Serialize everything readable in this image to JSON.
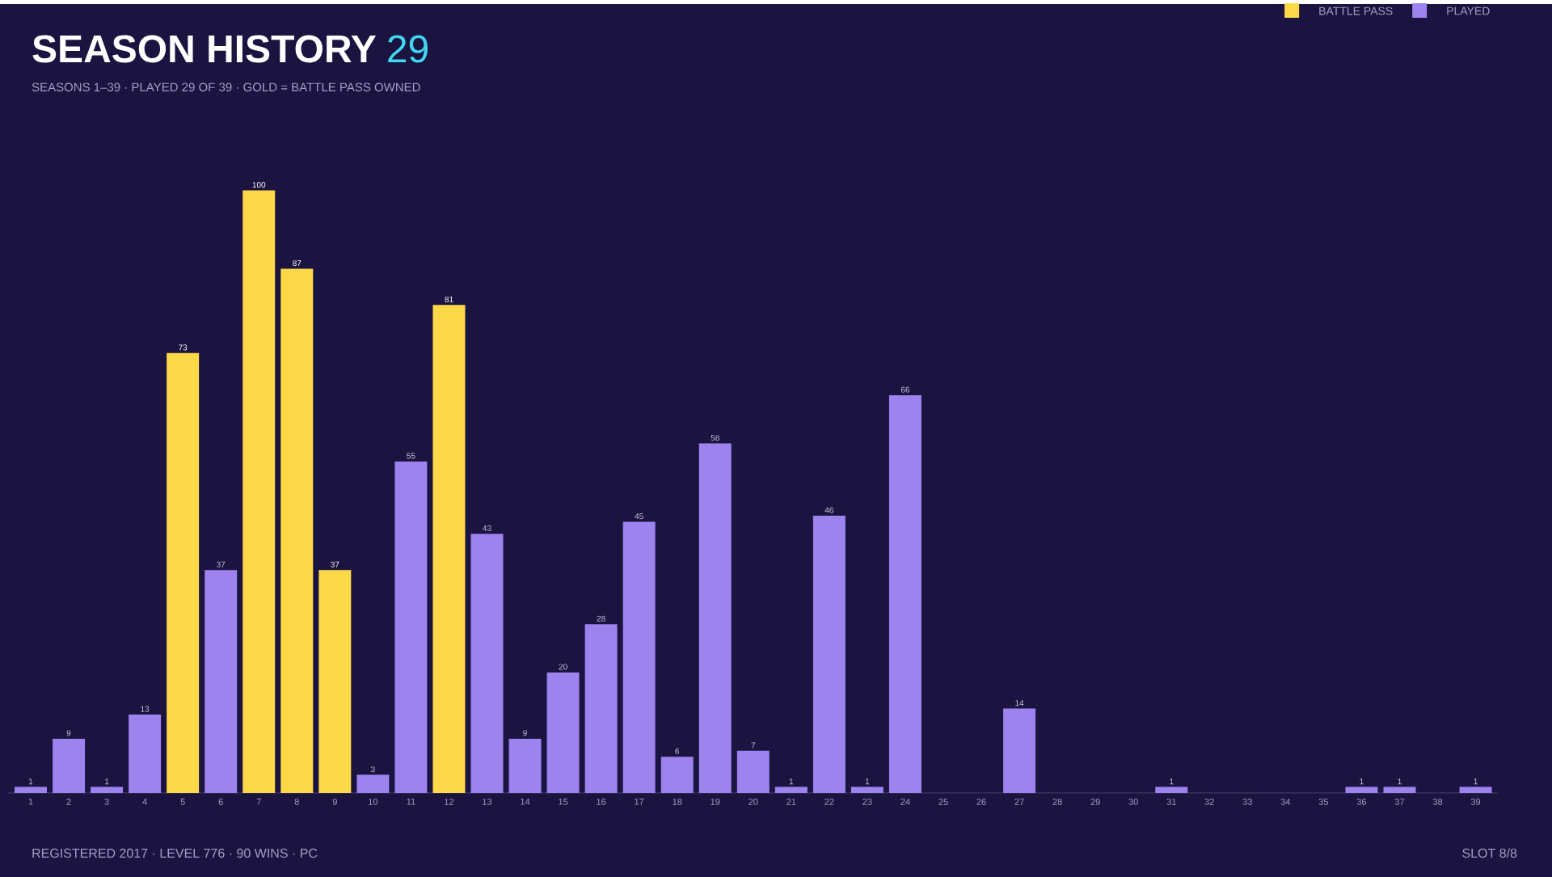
{
  "chart_data": {
    "type": "bar",
    "title": "SEASON HISTORY",
    "subtitle": "SEASONS 1–39  ·  PLAYED 29 OF 39  ·  GOLD = BATTLE PASS OWNED",
    "annotations": [
      "29",
      "REGISTERED 2017  ·  LEVEL 776  ·  90 WINS  ·  PC",
      "SLOT 8/8"
    ],
    "categories": [
      "1",
      "2",
      "3",
      "4",
      "5",
      "6",
      "7",
      "8",
      "9",
      "10",
      "11",
      "12",
      "13",
      "14",
      "15",
      "16",
      "17",
      "18",
      "19",
      "20",
      "21",
      "22",
      "23",
      "24",
      "25",
      "26",
      "27",
      "28",
      "29",
      "30",
      "31",
      "32",
      "33",
      "34",
      "35",
      "36",
      "37",
      "38",
      "39"
    ],
    "series": [
      {
        "name": "BATTLE PASS",
        "color": "#fdd94a",
        "values": [
          null,
          null,
          null,
          null,
          73,
          null,
          100,
          87,
          37,
          null,
          null,
          81,
          null,
          null,
          null,
          null,
          null,
          null,
          null,
          null,
          null,
          null,
          null,
          null,
          null,
          null,
          null,
          null,
          null,
          null,
          null,
          null,
          null,
          null,
          null,
          null,
          null,
          null,
          null
        ]
      },
      {
        "name": "PLAYED",
        "color": "#9c83ee",
        "values": [
          1,
          9,
          1,
          13,
          null,
          37,
          null,
          null,
          null,
          3,
          55,
          null,
          43,
          9,
          20,
          28,
          45,
          6,
          58,
          7,
          1,
          46,
          1,
          66,
          null,
          null,
          14,
          null,
          null,
          null,
          1,
          null,
          null,
          null,
          null,
          1,
          1,
          null,
          1
        ]
      }
    ],
    "data_labels": true,
    "legend": "top right"
  }
}
